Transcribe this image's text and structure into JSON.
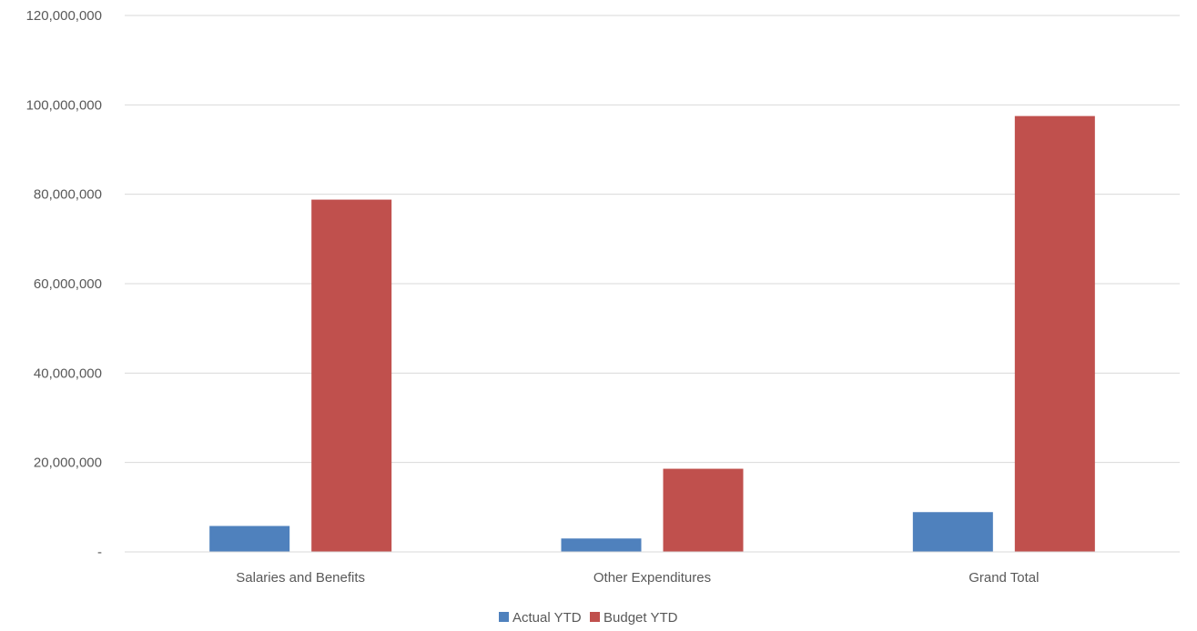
{
  "chart_data": {
    "type": "bar",
    "title": "",
    "xlabel": "",
    "ylabel": "",
    "categories": [
      "Salaries and Benefits",
      "Other Expenditures",
      "Grand Total"
    ],
    "series": [
      {
        "name": "Actual YTD",
        "color": "#4F81BD",
        "values": [
          5800000,
          3000000,
          8900000
        ]
      },
      {
        "name": "Budget YTD",
        "color": "#C0504D",
        "values": [
          78800000,
          18600000,
          97500000
        ]
      }
    ],
    "ylim": [
      0,
      120000000
    ],
    "yticks": [
      0,
      20000000,
      40000000,
      60000000,
      80000000,
      100000000,
      120000000
    ],
    "ytick_labels": [
      "-",
      "20,000,000",
      "40,000,000",
      "60,000,000",
      "80,000,000",
      "100,000,000",
      "120,000,000"
    ],
    "grid": true,
    "legend_position": "bottom"
  }
}
